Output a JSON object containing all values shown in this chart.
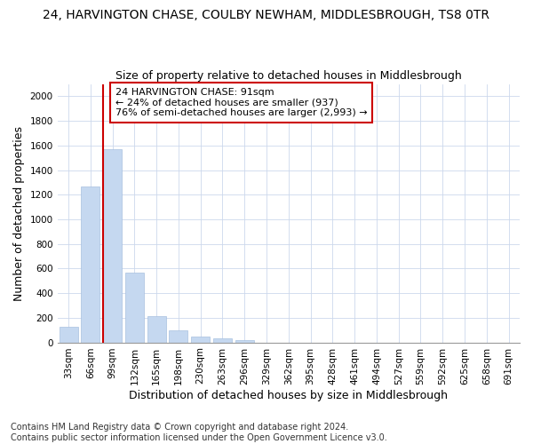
{
  "title": "24, HARVINGTON CHASE, COULBY NEWHAM, MIDDLESBROUGH, TS8 0TR",
  "subtitle": "Size of property relative to detached houses in Middlesbrough",
  "xlabel": "Distribution of detached houses by size in Middlesbrough",
  "ylabel": "Number of detached properties",
  "categories": [
    "33sqm",
    "66sqm",
    "99sqm",
    "132sqm",
    "165sqm",
    "198sqm",
    "230sqm",
    "263sqm",
    "296sqm",
    "329sqm",
    "362sqm",
    "395sqm",
    "428sqm",
    "461sqm",
    "494sqm",
    "527sqm",
    "559sqm",
    "592sqm",
    "625sqm",
    "658sqm",
    "691sqm"
  ],
  "values": [
    130,
    1270,
    1570,
    570,
    215,
    95,
    50,
    30,
    20,
    0,
    0,
    0,
    0,
    0,
    0,
    0,
    0,
    0,
    0,
    0,
    0
  ],
  "bar_color": "#c5d8f0",
  "bar_edge_color": "#a8c0e0",
  "highlight_line_color": "#cc0000",
  "annotation_text": "24 HARVINGTON CHASE: 91sqm\n← 24% of detached houses are smaller (937)\n76% of semi-detached houses are larger (2,993) →",
  "annotation_box_color": "#ffffff",
  "annotation_box_edge_color": "#cc0000",
  "ylim": [
    0,
    2100
  ],
  "yticks": [
    0,
    200,
    400,
    600,
    800,
    1000,
    1200,
    1400,
    1600,
    1800,
    2000
  ],
  "footnote": "Contains HM Land Registry data © Crown copyright and database right 2024.\nContains public sector information licensed under the Open Government Licence v3.0.",
  "title_fontsize": 10,
  "subtitle_fontsize": 9,
  "axis_label_fontsize": 9,
  "tick_fontsize": 7.5,
  "annotation_fontsize": 8,
  "footnote_fontsize": 7,
  "background_color": "#ffffff",
  "grid_color": "#ccd8ec"
}
